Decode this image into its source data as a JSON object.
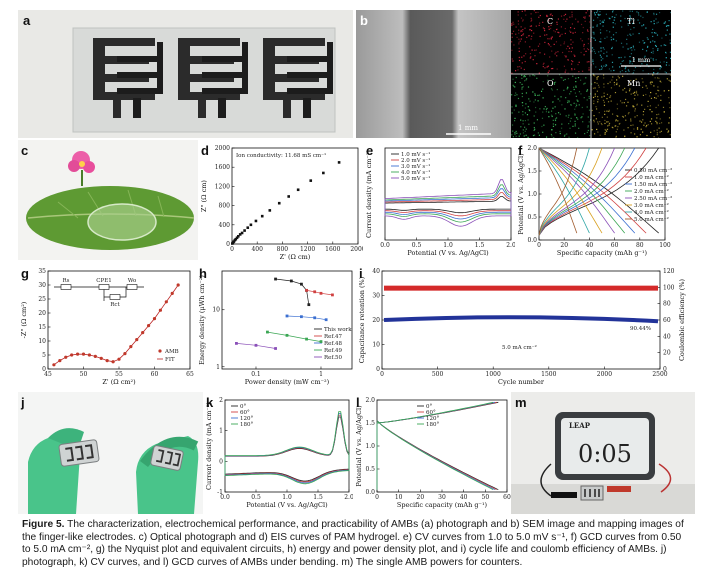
{
  "panel_labels": {
    "a": "a",
    "b": "b",
    "c": "c",
    "d": "d",
    "e": "e",
    "f": "f",
    "g": "g",
    "h": "h",
    "i": "i",
    "j": "j",
    "k": "k",
    "l": "l",
    "m": "m"
  },
  "sem": {
    "scale_main": "1 mm",
    "scale_map": "1 mm",
    "maps": [
      {
        "label": "C",
        "color": "#d7263d"
      },
      {
        "label": "Ti",
        "color": "#2bb3c0"
      },
      {
        "label": "O",
        "color": "#3fbf5f"
      },
      {
        "label": "Mn",
        "color": "#c9b23a"
      }
    ]
  },
  "timer_display": "0:05",
  "timer_brand": "LEAP",
  "chart_data": [
    {
      "panel": "d",
      "type": "scatter",
      "title": "",
      "annotation": "Ion conductivity: 11.68 mS cm⁻¹",
      "xlabel": "Z' (Ω cm)",
      "ylabel": "Z\" (Ω cm)",
      "xlim": [
        0,
        2000
      ],
      "ylim": [
        0,
        2000
      ],
      "xticks": [
        "0",
        "400",
        "800",
        "1200",
        "1600",
        "2000"
      ],
      "yticks": [
        "0",
        "200",
        "400",
        "600",
        "800",
        "1000",
        "1200",
        "1400",
        "1600",
        "1800",
        "2000"
      ],
      "x": [
        5,
        15,
        30,
        45,
        60,
        80,
        100,
        130,
        160,
        200,
        250,
        300,
        380,
        480,
        600,
        750,
        900,
        1050,
        1250,
        1450,
        1700
      ],
      "y": [
        10,
        30,
        50,
        80,
        100,
        130,
        160,
        200,
        230,
        280,
        340,
        400,
        480,
        580,
        700,
        850,
        990,
        1130,
        1320,
        1480,
        1700
      ]
    },
    {
      "panel": "e",
      "type": "line",
      "xlabel": "Potential (V vs. Ag/AgCl)",
      "ylabel": "Current density (mA cm⁻²)",
      "xlim": [
        0,
        2.0
      ],
      "ylim": [
        -0.6,
        1.0
      ],
      "xticks": [
        "0.0",
        "0.5",
        "1.0",
        "1.5",
        "2.0"
      ],
      "series": [
        {
          "name": "1.0 mV s⁻¹",
          "color": "#222222",
          "amp": 0.35
        },
        {
          "name": "2.0 mV s⁻¹",
          "color": "#d04040",
          "amp": 0.5
        },
        {
          "name": "3.0 mV s⁻¹",
          "color": "#3b6fd1",
          "amp": 0.65
        },
        {
          "name": "4.0 mV s⁻¹",
          "color": "#3aa653",
          "amp": 0.8
        },
        {
          "name": "5.0 mV s⁻¹",
          "color": "#8a4fb8",
          "amp": 1.0
        }
      ]
    },
    {
      "panel": "f",
      "type": "line",
      "xlabel": "Specific capacity (mAh g⁻¹)",
      "ylabel": "Potential (V vs. Ag/AgCl)",
      "xlim": [
        0,
        100
      ],
      "ylim": [
        0,
        2.0
      ],
      "xticks": [
        "0",
        "20",
        "40",
        "60",
        "80",
        "100"
      ],
      "yticks": [
        "0.0",
        "0.5",
        "1.0",
        "1.5",
        "2.0"
      ],
      "series": [
        {
          "name": "0.50 mA cm⁻²",
          "color": "#222222",
          "cap": 95
        },
        {
          "name": "1.0 mA cm⁻²",
          "color": "#d04040",
          "cap": 85
        },
        {
          "name": "1.50 mA cm⁻²",
          "color": "#3b6fd1",
          "cap": 76
        },
        {
          "name": "2.0 mA cm⁻²",
          "color": "#3aa653",
          "cap": 68
        },
        {
          "name": "2.50 mA cm⁻²",
          "color": "#8a4fb8",
          "cap": 60
        },
        {
          "name": "3.0 mA cm⁻²",
          "color": "#d8a020",
          "cap": 50
        },
        {
          "name": "4.0 mA cm⁻²",
          "color": "#2fa6a6",
          "cap": 40
        },
        {
          "name": "5.0 mA cm⁻²",
          "color": "#a05a2c",
          "cap": 30
        }
      ]
    },
    {
      "panel": "g",
      "type": "scatter",
      "xlabel": "Z' (Ω cm²)",
      "ylabel": "-Z\" (Ω cm²)",
      "xlim": [
        43,
        67
      ],
      "ylim": [
        0,
        35
      ],
      "xticks": [
        "45",
        "50",
        "55",
        "60",
        "65"
      ],
      "yticks": [
        "0",
        "5",
        "10",
        "15",
        "20",
        "25",
        "30",
        "35"
      ],
      "legend": [
        "AMB",
        "FIT"
      ],
      "circuit": {
        "labels": [
          "Rs",
          "CPE1",
          "Wo",
          "Rct"
        ]
      },
      "x": [
        44,
        45,
        46,
        47,
        48,
        49,
        50,
        51,
        52,
        53,
        54,
        55,
        56,
        57,
        58,
        59,
        60,
        61,
        62,
        63,
        64,
        65
      ],
      "y": [
        1.5,
        3,
        4.2,
        5,
        5.3,
        5.3,
        5,
        4.5,
        3.8,
        3,
        2.6,
        3.5,
        5.5,
        8,
        10.5,
        13,
        15.5,
        18,
        21,
        24,
        27,
        30
      ]
    },
    {
      "panel": "h",
      "type": "scatter",
      "xlabel": "Power density (mW cm⁻²)",
      "ylabel": "Energy density (μWh cm⁻²)",
      "xscale": "log",
      "yscale": "log",
      "xticks": [
        "0.1",
        "1"
      ],
      "yticks": [
        "1",
        "10"
      ],
      "series": [
        {
          "name": "This work",
          "color": "#222222",
          "x": [
            0.2,
            0.35,
            0.5,
            0.6,
            0.65
          ],
          "y": [
            30,
            28,
            25,
            20,
            12
          ]
        },
        {
          "name": "Ref.47",
          "color": "#d04040",
          "x": [
            0.6,
            0.8,
            1.0,
            1.5
          ],
          "y": [
            20,
            19,
            18,
            17
          ]
        },
        {
          "name": "Ref.48",
          "color": "#3b6fd1",
          "x": [
            0.3,
            0.5,
            0.8,
            1.2
          ],
          "y": [
            8,
            7.8,
            7.5,
            7
          ]
        },
        {
          "name": "Ref.49",
          "color": "#3aa653",
          "x": [
            0.15,
            0.3,
            0.6,
            1.0
          ],
          "y": [
            4.5,
            4,
            3.5,
            3.2
          ]
        },
        {
          "name": "Ref.50",
          "color": "#8a4fb8",
          "x": [
            0.05,
            0.1,
            0.2
          ],
          "y": [
            3,
            2.8,
            2.5
          ]
        }
      ]
    },
    {
      "panel": "i",
      "type": "scatter",
      "xlabel": "Cycle number",
      "ylabel": "Capacitance retention (%)",
      "y2label": "Coulombic efficiency (%)",
      "xlim": [
        0,
        2500
      ],
      "ylim": [
        0,
        40
      ],
      "y2lim": [
        0,
        120
      ],
      "xticks": [
        "0",
        "500",
        "1000",
        "1500",
        "2000",
        "2500"
      ],
      "yticks": [
        "0",
        "10",
        "20",
        "30",
        "40"
      ],
      "y2ticks": [
        "0",
        "20",
        "40",
        "60",
        "80",
        "100",
        "120"
      ],
      "annotation_rate": "5.0 mA cm⁻²",
      "annotation_value": "90.44%",
      "series": [
        {
          "name": "Capacitance retention",
          "color": "#223399",
          "level": 20
        },
        {
          "name": "Coulombic efficiency",
          "color": "#d42a2a",
          "level": 33
        }
      ]
    },
    {
      "panel": "k",
      "type": "line",
      "xlabel": "Potential (V vs. Ag/AgCl)",
      "ylabel": "Current density (mA cm⁻²)",
      "xlim": [
        0,
        2.0
      ],
      "ylim": [
        -1.2,
        2.4
      ],
      "xticks": [
        "0.0",
        "0.5",
        "1.0",
        "1.5",
        "2.0"
      ],
      "yticks": [
        "-1",
        "0",
        "1",
        "2"
      ],
      "series": [
        {
          "name": "0°",
          "color": "#222222"
        },
        {
          "name": "60°",
          "color": "#d04040"
        },
        {
          "name": "120°",
          "color": "#3b6fd1"
        },
        {
          "name": "180°",
          "color": "#3aa653"
        }
      ]
    },
    {
      "panel": "l",
      "type": "line",
      "xlabel": "Specific capacity (mAh g⁻¹)",
      "ylabel": "Potential (V vs. Ag/AgCl)",
      "xlim": [
        0,
        60
      ],
      "ylim": [
        0,
        2.0
      ],
      "xticks": [
        "0",
        "10",
        "20",
        "30",
        "40",
        "50",
        "60"
      ],
      "yticks": [
        "0.0",
        "0.5",
        "1.0",
        "1.5",
        "2.0"
      ],
      "series": [
        {
          "name": "0°",
          "color": "#222222"
        },
        {
          "name": "60°",
          "color": "#d04040"
        },
        {
          "name": "120°",
          "color": "#3b6fd1"
        },
        {
          "name": "180°",
          "color": "#3aa653"
        }
      ]
    }
  ],
  "caption": {
    "fig": "Figure 5.",
    "text": " The characterization, electrochemical performance, and practicability of AMBs (a) photograph and b) SEM image and mapping images of the finger-like electrodes. c) Optical photograph and d) EIS curves of PAM hydrogel. e) CV curves from 1.0 to 5.0 mV s⁻¹, f) GCD curves from 0.50 to 5.0 mA cm⁻², g) the Nyquist plot and equivalent circuits, h) energy and power density plot, and i) cycle life and coulomb efficiency of AMBs. j) photograph, k) CV curves, and l) GCD curves of AMBs under bending. m) The single AMB powers for counters."
  }
}
